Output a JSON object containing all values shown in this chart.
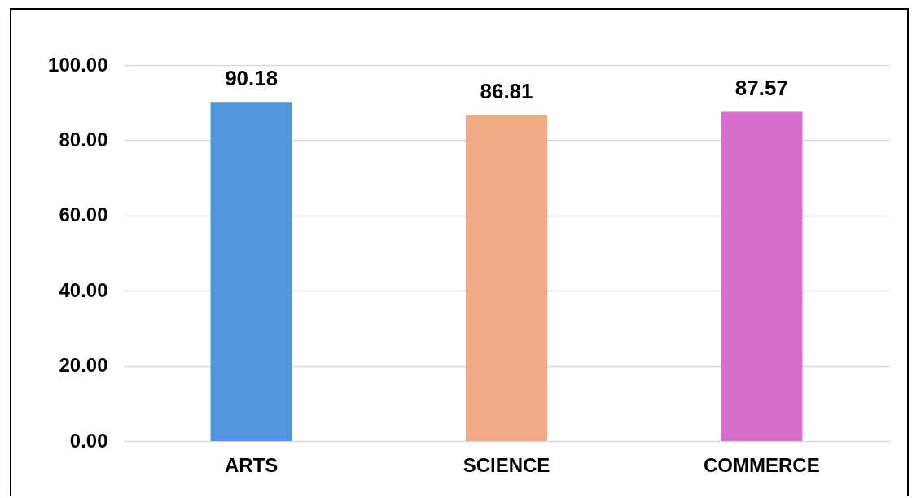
{
  "chart_data": {
    "type": "bar",
    "categories": [
      "ARTS",
      "SCIENCE",
      "COMMERCE"
    ],
    "values": [
      90.18,
      86.81,
      87.57
    ],
    "colors": [
      "#5197db",
      "#f2ab86",
      "#d66fcc"
    ],
    "ylim": [
      0,
      100
    ],
    "yticks": [
      {
        "value": 0,
        "label": "0.00"
      },
      {
        "value": 20,
        "label": "20.00"
      },
      {
        "value": 40,
        "label": "40.00"
      },
      {
        "value": 60,
        "label": "60.00"
      },
      {
        "value": 80,
        "label": "80.00"
      },
      {
        "value": 100,
        "label": "100.00"
      }
    ],
    "grid": "y",
    "data_labels": true
  }
}
